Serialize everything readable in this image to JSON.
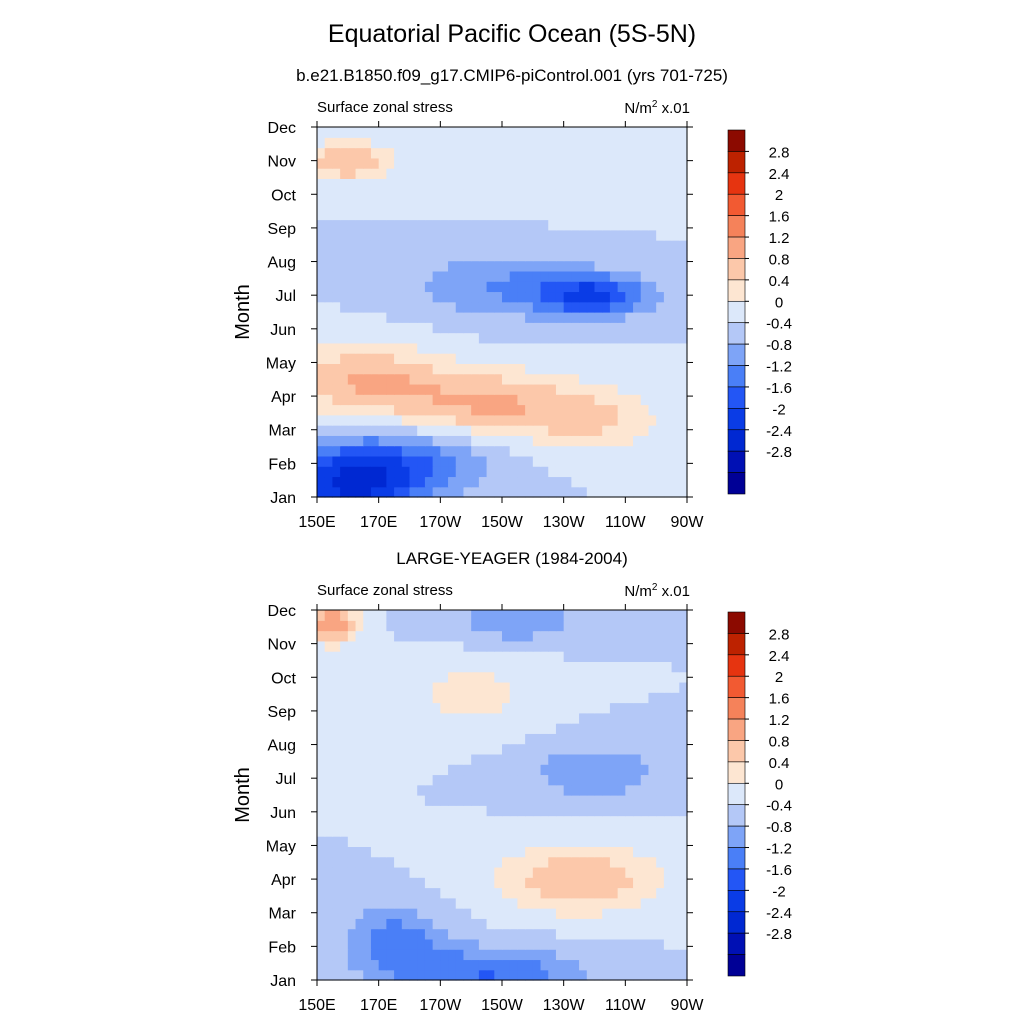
{
  "figure": {
    "title": "Equatorial Pacific Ocean (5S-5N)"
  },
  "chart_data": [
    {
      "type": "heatmap",
      "title": "b.e21.B1850.f09_g17.CMIP6-piControl.001 (yrs 701-725)",
      "left_string": "Surface zonal stress",
      "units_base": "N/m",
      "units_sup": "2",
      "units_suffix": " x.01",
      "xlabel": "",
      "ylabel": "Month",
      "x_ticks": [
        "150E",
        "170E",
        "170W",
        "150W",
        "130W",
        "110W",
        "90W"
      ],
      "y_ticks": [
        "Jan",
        "Feb",
        "Mar",
        "Apr",
        "May",
        "Jun",
        "Jul",
        "Aug",
        "Sep",
        "Oct",
        "Nov",
        "Dec"
      ],
      "colorbar_labels": [
        "2.8",
        "2.4",
        "2",
        "1.6",
        "1.2",
        "0.8",
        "0.4",
        "0",
        "-0.4",
        "-0.8",
        "-1.2",
        "-1.6",
        "-2",
        "-2.4",
        "-2.8"
      ],
      "levels": [
        -2.8,
        -2.4,
        -2,
        -1.6,
        -1.2,
        -0.8,
        -0.4,
        0,
        0.4,
        0.8,
        1.2,
        1.6,
        2,
        2.4,
        2.8
      ],
      "features": [
        {
          "lon": 160,
          "month": 1.2,
          "value": -1.6,
          "rx": 22,
          "ry": 1.1
        },
        {
          "lon": 175,
          "month": 2.0,
          "value": -1.2,
          "rx": 30,
          "ry": 1.0
        },
        {
          "lon": 165,
          "month": 4.5,
          "value": 1.2,
          "rx": 26,
          "ry": 1.1
        },
        {
          "lon": 205,
          "month": 3.8,
          "value": 1.2,
          "rx": 28,
          "ry": 1.0
        },
        {
          "lon": 240,
          "month": 3.3,
          "value": 0.8,
          "rx": 22,
          "ry": 1.0
        },
        {
          "lon": 240,
          "month": 7.0,
          "value": -1.6,
          "rx": 18,
          "ry": 0.6
        },
        {
          "lon": 210,
          "month": 7.3,
          "value": -0.8,
          "rx": 30,
          "ry": 1.0
        },
        {
          "lon": 160,
          "month": 11.0,
          "value": 1.2,
          "rx": 14,
          "ry": 0.6
        },
        {
          "lon": 230,
          "month": 11.1,
          "value": 0.4,
          "rx": 40,
          "ry": 1.2
        }
      ]
    },
    {
      "type": "heatmap",
      "title": "LARGE-YEAGER (1984-2004)",
      "left_string": "Surface zonal stress",
      "units_base": "N/m",
      "units_sup": "2",
      "units_suffix": " x.01",
      "xlabel": "",
      "ylabel": "Month",
      "x_ticks": [
        "150E",
        "170E",
        "170W",
        "150W",
        "130W",
        "110W",
        "90W"
      ],
      "y_ticks": [
        "Jan",
        "Feb",
        "Mar",
        "Apr",
        "May",
        "Jun",
        "Jul",
        "Aug",
        "Sep",
        "Oct",
        "Nov",
        "Dec"
      ],
      "colorbar_labels": [
        "2.8",
        "2.4",
        "2",
        "1.6",
        "1.2",
        "0.8",
        "0.4",
        "0",
        "-0.4",
        "-0.8",
        "-1.2",
        "-1.6",
        "-2",
        "-2.4",
        "-2.8"
      ],
      "levels": [
        -2.8,
        -2.4,
        -2,
        -1.6,
        -1.2,
        -0.8,
        -0.4,
        0,
        0.4,
        0.8,
        1.2,
        1.6,
        2,
        2.4,
        2.8
      ],
      "features": [
        {
          "lon": 155,
          "month": 11.6,
          "value": 1.6,
          "rx": 8,
          "ry": 0.6
        },
        {
          "lon": 175,
          "month": 2.2,
          "value": -1.0,
          "rx": 16,
          "ry": 1.0
        },
        {
          "lon": 205,
          "month": 1.2,
          "value": -1.2,
          "rx": 30,
          "ry": 0.8
        },
        {
          "lon": 235,
          "month": 4.0,
          "value": 1.2,
          "rx": 26,
          "ry": 1.0
        },
        {
          "lon": 200,
          "month": 9.5,
          "value": 0.6,
          "rx": 20,
          "ry": 1.0
        },
        {
          "lon": 240,
          "month": 7.2,
          "value": -0.8,
          "rx": 20,
          "ry": 0.8
        },
        {
          "lon": 215,
          "month": 11.7,
          "value": -0.8,
          "rx": 20,
          "ry": 0.6
        }
      ]
    }
  ]
}
